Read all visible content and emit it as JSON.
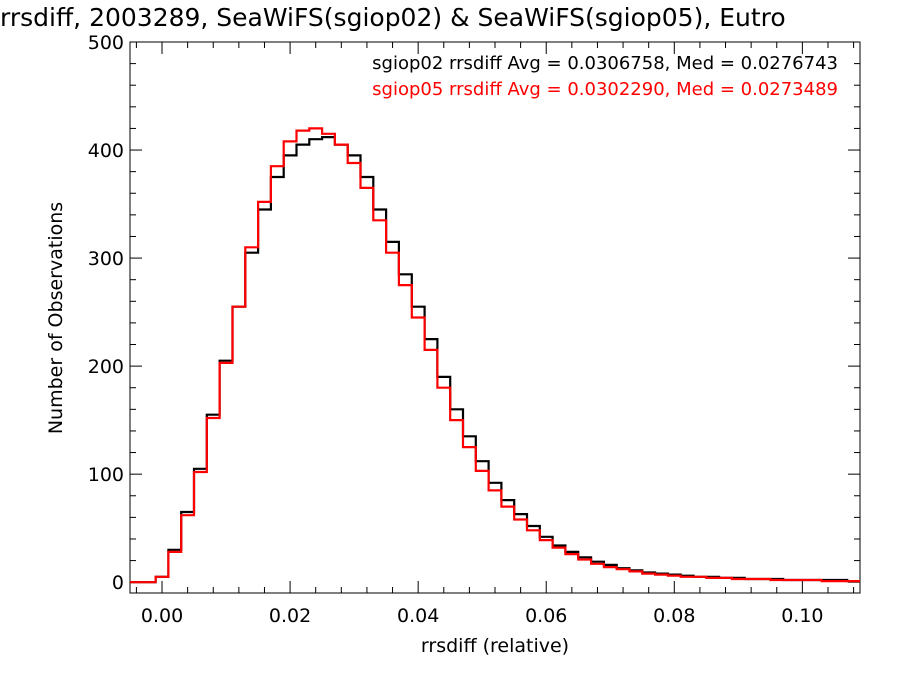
{
  "chart_data": {
    "type": "line",
    "title": "rrsdiff, 2003289, SeaWiFS(sgiop02) & SeaWiFS(sgiop05), Eutro",
    "xlabel": "rrsdiff (relative)",
    "ylabel": "Number of Observations",
    "xlim": [
      -0.005,
      0.109
    ],
    "ylim": [
      -10,
      500
    ],
    "x_ticks": [
      "0.00",
      "0.02",
      "0.04",
      "0.06",
      "0.08",
      "0.10"
    ],
    "y_ticks": [
      "0",
      "100",
      "200",
      "300",
      "400",
      "500"
    ],
    "x_tick_values": [
      0,
      0.02,
      0.04,
      0.06,
      0.08,
      0.1
    ],
    "y_tick_values": [
      0,
      100,
      200,
      300,
      400,
      500
    ],
    "grid": false,
    "legend_position": "top-right",
    "x": [
      -0.004,
      -0.002,
      0.0,
      0.002,
      0.004,
      0.006,
      0.008,
      0.01,
      0.012,
      0.014,
      0.016,
      0.018,
      0.02,
      0.022,
      0.024,
      0.026,
      0.028,
      0.03,
      0.032,
      0.034,
      0.036,
      0.038,
      0.04,
      0.042,
      0.044,
      0.046,
      0.048,
      0.05,
      0.052,
      0.054,
      0.056,
      0.058,
      0.06,
      0.062,
      0.064,
      0.066,
      0.068,
      0.07,
      0.072,
      0.074,
      0.076,
      0.078,
      0.08,
      0.082,
      0.084,
      0.086,
      0.088,
      0.09,
      0.092,
      0.094,
      0.096,
      0.098,
      0.1,
      0.102,
      0.104,
      0.106,
      0.108
    ],
    "series": [
      {
        "name": "sgiop02",
        "color": "#000000",
        "values": [
          0,
          0,
          5,
          30,
          65,
          105,
          155,
          205,
          255,
          305,
          345,
          375,
          395,
          405,
          410,
          412,
          405,
          395,
          375,
          345,
          315,
          285,
          255,
          225,
          190,
          160,
          135,
          112,
          92,
          76,
          63,
          52,
          42,
          34,
          28,
          23,
          19,
          16,
          13,
          11,
          9,
          8,
          7,
          6,
          5,
          5,
          4,
          4,
          3,
          3,
          3,
          2,
          2,
          2,
          2,
          2,
          1
        ]
      },
      {
        "name": "sgiop05",
        "color": "#ff0000",
        "values": [
          0,
          0,
          5,
          28,
          62,
          102,
          152,
          203,
          255,
          310,
          352,
          385,
          408,
          418,
          420,
          415,
          405,
          388,
          365,
          335,
          305,
          275,
          245,
          215,
          180,
          150,
          125,
          103,
          85,
          70,
          58,
          48,
          39,
          32,
          26,
          21,
          17,
          14,
          12,
          10,
          8,
          7,
          6,
          5,
          5,
          4,
          4,
          3,
          3,
          3,
          2,
          2,
          2,
          2,
          1,
          1,
          1
        ]
      }
    ],
    "annotations": [
      {
        "text": "sgiop02 rrsdiff Avg = 0.0306758, Med = 0.0276743",
        "color": "#000000"
      },
      {
        "text": "sgiop05 rrsdiff Avg = 0.0302290, Med = 0.0273489",
        "color": "#ff0000"
      }
    ]
  }
}
